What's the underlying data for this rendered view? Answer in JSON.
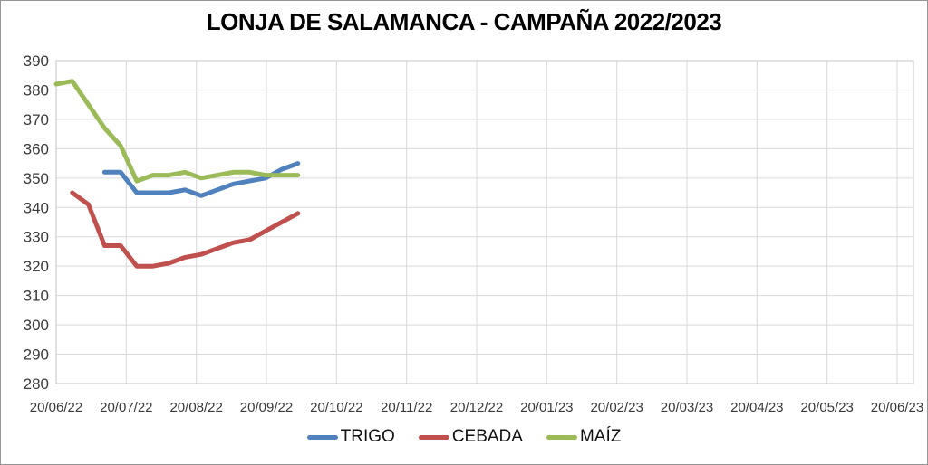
{
  "chart_data": {
    "type": "line",
    "title": "LONJA DE SALAMANCA - CAMPAÑA 2022/2023",
    "grid": true,
    "legend_position": "bottom",
    "ylim": [
      280,
      390
    ],
    "y_axis": {
      "min": 280,
      "max": 390,
      "step": 10,
      "ticks": [
        280,
        290,
        300,
        310,
        320,
        330,
        340,
        350,
        360,
        370,
        380,
        390
      ]
    },
    "x_axis": {
      "type": "date",
      "tick_labels": [
        "20/06/22",
        "20/07/22",
        "20/08/22",
        "20/09/22",
        "20/10/22",
        "20/11/22",
        "20/12/22",
        "20/01/23",
        "20/02/23",
        "20/03/23",
        "20/04/23",
        "20/05/23",
        "20/06/23"
      ]
    },
    "point_dates": [
      "20/06/22",
      "27/06/22",
      "04/07/22",
      "11/07/22",
      "18/07/22",
      "25/07/22",
      "01/08/22",
      "08/08/22",
      "15/08/22",
      "22/08/22",
      "29/08/22",
      "05/09/22",
      "12/09/22",
      "19/09/22",
      "26/09/22",
      "03/10/22"
    ],
    "series": [
      {
        "name": "TRIGO",
        "color": "#4F81BD",
        "values": [
          null,
          null,
          null,
          352,
          352,
          345,
          345,
          345,
          346,
          344,
          346,
          348,
          349,
          350,
          353,
          355
        ]
      },
      {
        "name": "CEBADA",
        "color": "#C0504D",
        "values": [
          null,
          345,
          341,
          327,
          327,
          320,
          320,
          321,
          323,
          324,
          326,
          328,
          329,
          332,
          335,
          338
        ]
      },
      {
        "name": "MAÍZ",
        "color": "#9BBB59",
        "values": [
          382,
          383,
          375,
          367,
          361,
          349,
          351,
          351,
          352,
          350,
          351,
          352,
          352,
          351,
          351,
          351
        ]
      }
    ],
    "gridline_color": "#D9D9D9",
    "plot_border_color": "#C6C6C6",
    "frame_border_color": "#969696"
  }
}
